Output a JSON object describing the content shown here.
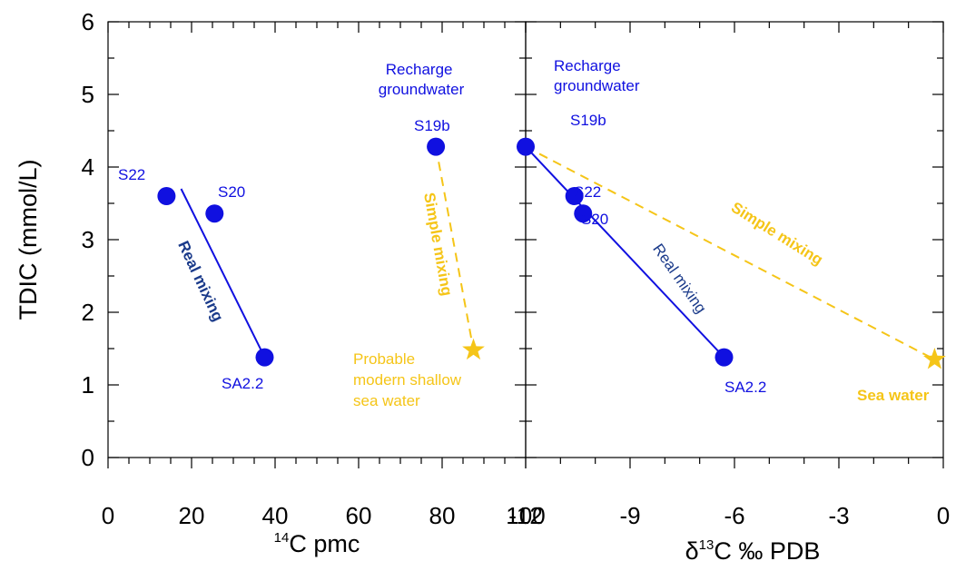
{
  "chart_data": [
    {
      "type": "scatter",
      "panel": "left",
      "xlim": [
        0,
        100
      ],
      "ylim": [
        0,
        6
      ],
      "xticks": [
        "0",
        "20",
        "40",
        "60",
        "80",
        "100"
      ],
      "yticks": [
        "0",
        "1",
        "2",
        "3",
        "4",
        "5",
        "6"
      ],
      "xlabel": {
        "sup": "14",
        "text": "C pmc"
      },
      "ylabel": "TDIC (mmol/L)",
      "grid": false,
      "points": [
        {
          "label": "S22",
          "x": 14,
          "y": 3.6,
          "color": "#1010e0",
          "marker": "circle"
        },
        {
          "label": "S20",
          "x": 25.5,
          "y": 3.36,
          "color": "#1010e0",
          "marker": "circle"
        },
        {
          "label": "SA2.2",
          "x": 37.5,
          "y": 1.38,
          "color": "#1010e0",
          "marker": "circle"
        },
        {
          "label": "S19b",
          "x": 78.5,
          "y": 4.28,
          "color": "#1010e0",
          "marker": "circle"
        },
        {
          "label": "",
          "x": 87.5,
          "y": 1.48,
          "color": "#f5c518",
          "marker": "star"
        }
      ],
      "lines": [
        {
          "label": "Real mixing",
          "x": [
            17.5,
            37.5
          ],
          "y": [
            3.7,
            1.38
          ],
          "color": "#1010e0",
          "style": "solid"
        },
        {
          "label": "Simple mixing",
          "x": [
            78.5,
            87.5
          ],
          "y": [
            4.28,
            1.48
          ],
          "color": "#f5c518",
          "style": "dashed"
        }
      ],
      "annotations": [
        {
          "text": "Real mixing",
          "color": "#1a3a8a",
          "weight": "bold"
        },
        {
          "text": "Simple mixing",
          "color": "#f5c518",
          "weight": "bold"
        },
        {
          "lines": [
            "Recharge",
            "groundwater"
          ],
          "color": "#1010e0"
        },
        {
          "lines": [
            "Probable",
            "modern shallow",
            "sea water"
          ],
          "color": "#f5c518"
        }
      ]
    },
    {
      "type": "scatter",
      "panel": "right",
      "xlim": [
        -12,
        0
      ],
      "ylim": [
        0,
        6
      ],
      "xticks": [
        "-12",
        "-9",
        "-6",
        "-3",
        "0"
      ],
      "xlabel": {
        "prefix": "δ",
        "sup": "13",
        "text": "C ‰ PDB"
      },
      "grid": false,
      "points": [
        {
          "label": "S19b",
          "x": -12.0,
          "y": 4.28,
          "color": "#1010e0",
          "marker": "circle"
        },
        {
          "label": "S22",
          "x": -10.6,
          "y": 3.6,
          "color": "#1010e0",
          "marker": "circle"
        },
        {
          "label": "S20",
          "x": -10.35,
          "y": 3.36,
          "color": "#1010e0",
          "marker": "circle"
        },
        {
          "label": "SA2.2",
          "x": -6.3,
          "y": 1.38,
          "color": "#1010e0",
          "marker": "circle"
        },
        {
          "label": "",
          "x": -0.25,
          "y": 1.35,
          "color": "#f5c518",
          "marker": "star"
        }
      ],
      "lines": [
        {
          "label": "Real mixing",
          "x": [
            -12.0,
            -6.3
          ],
          "y": [
            4.28,
            1.38
          ],
          "color": "#1010e0",
          "style": "solid"
        },
        {
          "label": "Simple mixing",
          "x": [
            -12.0,
            -0.25
          ],
          "y": [
            4.28,
            1.35
          ],
          "color": "#f5c518",
          "style": "dashed"
        }
      ],
      "annotations": [
        {
          "text": "Real mixing",
          "color": "#1a3a8a",
          "weight": "normal"
        },
        {
          "text": "Simple mixing",
          "color": "#f5c518",
          "weight": "bold"
        },
        {
          "lines": [
            "Recharge",
            "groundwater"
          ],
          "color": "#1010e0"
        },
        {
          "text": "Sea water",
          "color": "#f5c518",
          "weight": "bold"
        }
      ]
    }
  ]
}
